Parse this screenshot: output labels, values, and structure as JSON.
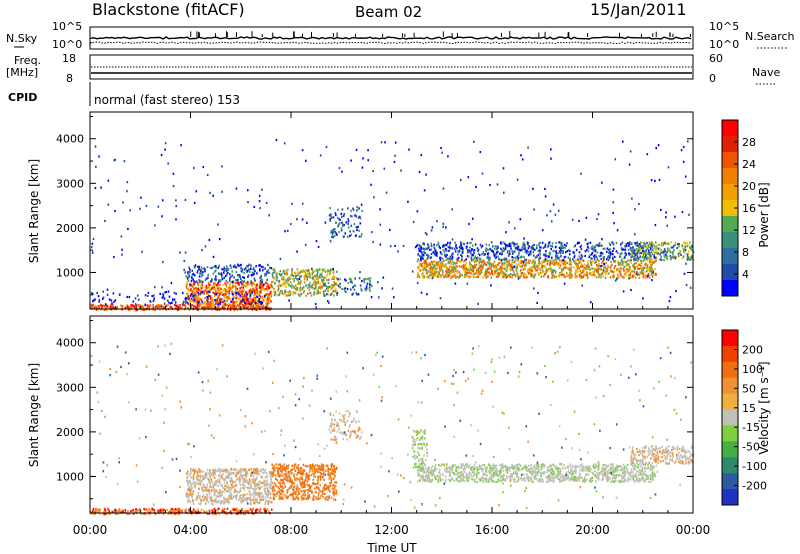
{
  "header": {
    "station": "Blackstone (fitACF)",
    "beam": "Beam 02",
    "date": "15/Jan/2011"
  },
  "top_panels": {
    "nsky_label": "N.Sky",
    "nsky_ticks": [
      "10^5",
      "10^0"
    ],
    "nsearch_label": "N.Search",
    "nsearch_ticks": [
      "10^5",
      "10^0"
    ],
    "freq_label": "Freq.",
    "freq_unit": "[MHz]",
    "freq_ticks": [
      "18",
      "8"
    ],
    "nave_label": "Nave",
    "nave_ticks": [
      "60",
      "0"
    ],
    "cpid_label": "CPID",
    "cpid_text": "normal (fast stereo) 153"
  },
  "chart_data": [
    {
      "type": "heatmap",
      "name": "power-panel",
      "ylabel": "Slant Range [km]",
      "yticks": [
        1000,
        2000,
        3000,
        4000
      ],
      "ylim": [
        180,
        4600
      ],
      "xlim_hours": [
        0,
        24
      ],
      "colorbar": {
        "label": "Power [dB]",
        "ticks": [
          "28",
          "24",
          "20",
          "16",
          "12",
          "8",
          "4"
        ],
        "colors": [
          "#0000ff",
          "#1e4aa8",
          "#2f6fa0",
          "#3c8f7a",
          "#55aa55",
          "#f0c000",
          "#f5a000",
          "#f08000",
          "#ee5500",
          "#e02000",
          "#ff0000"
        ]
      }
    },
    {
      "type": "heatmap",
      "name": "velocity-panel",
      "ylabel": "Slant Range [km]",
      "yticks": [
        1000,
        2000,
        3000,
        4000
      ],
      "ylim": [
        180,
        4600
      ],
      "xlim_hours": [
        0,
        24
      ],
      "colorbar": {
        "label": "Velocity [m s⁻¹]",
        "ticks": [
          "200",
          "100",
          "50",
          "15",
          "-15",
          "-50",
          "-100",
          "-200"
        ],
        "colors": [
          "#2030c0",
          "#2c5aa0",
          "#2f8a6a",
          "#44b044",
          "#7fd040",
          "#c0c0b8",
          "#f0b040",
          "#f09030",
          "#f07010",
          "#f04000",
          "#ff0000"
        ]
      }
    }
  ],
  "xaxis": {
    "ticks": [
      "00:00",
      "04:00",
      "08:00",
      "12:00",
      "16:00",
      "20:00",
      "00:00"
    ],
    "label": "Time UT"
  }
}
